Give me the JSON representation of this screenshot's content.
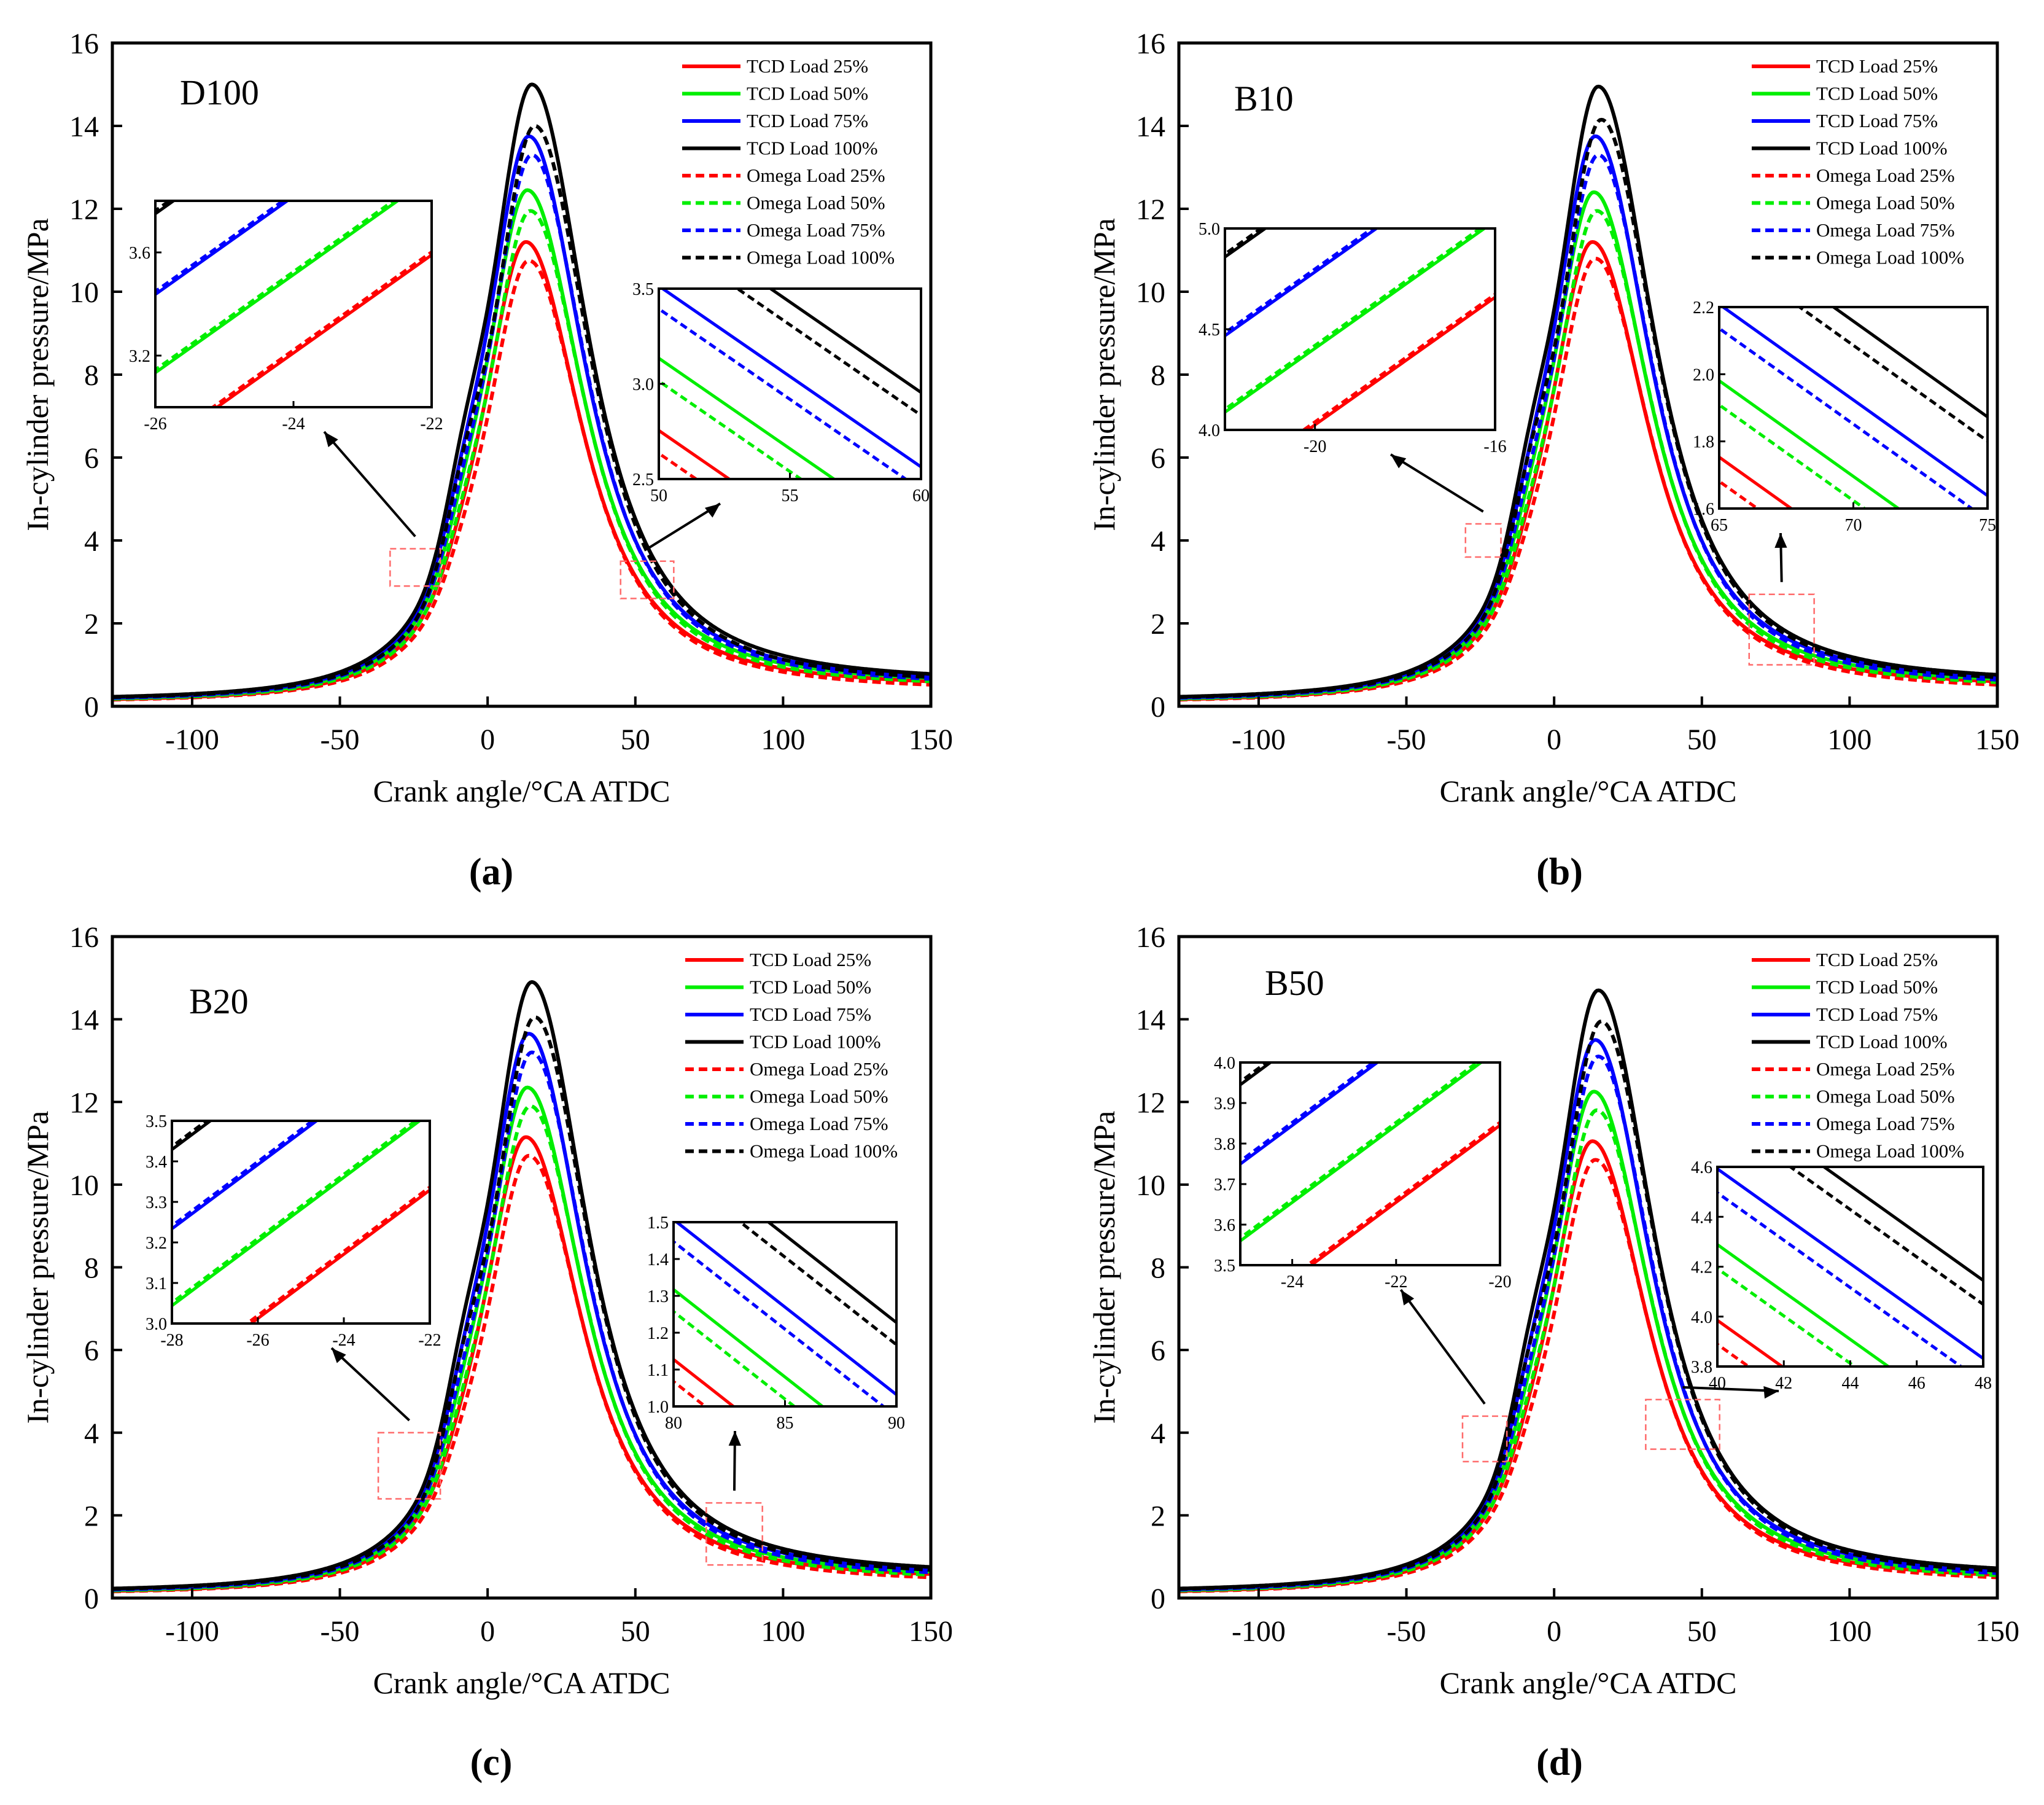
{
  "figure": {
    "panels": [
      {
        "id": "a",
        "caption": "(a)",
        "fuel_label": "D100",
        "callout_a": "left",
        "callout_b": "right"
      },
      {
        "id": "b",
        "caption": "(b)",
        "fuel_label": "B10",
        "callout_a": "left",
        "callout_b": "right"
      },
      {
        "id": "c",
        "caption": "(c)",
        "fuel_label": "B20",
        "callout_a": "left",
        "callout_b": "right"
      },
      {
        "id": "d",
        "caption": "(d)",
        "fuel_label": "B50",
        "callout_a": "left",
        "callout_b": "right"
      }
    ]
  },
  "chart_data": [
    {
      "type": "line",
      "title": "D100",
      "xlabel": "Crank angle/°CA ATDC",
      "ylabel": "In-cylinder pressure/MPa",
      "xlim": [
        -127,
        150
      ],
      "ylim": [
        0,
        16
      ],
      "xticks": [
        -100,
        -50,
        0,
        50,
        100,
        150
      ],
      "yticks": [
        0,
        2,
        4,
        6,
        8,
        10,
        12,
        14,
        16
      ],
      "legend_position": "top-right",
      "series": [
        {
          "name": "TCD Load 25%",
          "color": "#ff0000",
          "style": "solid",
          "peak": 11.2,
          "peak_angle": 13,
          "p0": 0.17,
          "p_end": 0.6,
          "shoulder": 0.35
        },
        {
          "name": "TCD Load 50%",
          "color": "#00ee00",
          "style": "solid",
          "peak": 12.45,
          "peak_angle": 13.5,
          "p0": 0.19,
          "p_end": 0.68,
          "shoulder": 0.6
        },
        {
          "name": "TCD Load 75%",
          "color": "#0000ff",
          "style": "solid",
          "peak": 13.75,
          "peak_angle": 14,
          "p0": 0.21,
          "p_end": 0.73,
          "shoulder": 0.9
        },
        {
          "name": "TCD Load 100%",
          "color": "#000000",
          "style": "solid",
          "peak": 15.0,
          "peak_angle": 15,
          "p0": 0.23,
          "p_end": 0.78,
          "shoulder": 1.3
        },
        {
          "name": "Omega Load 25%",
          "color": "#ff0000",
          "style": "dashed",
          "peak": 10.75,
          "peak_angle": 14,
          "p0": 0.16,
          "p_end": 0.52,
          "shoulder": 0.35
        },
        {
          "name": "Omega Load 50%",
          "color": "#00ee00",
          "style": "dashed",
          "peak": 11.95,
          "peak_angle": 14.5,
          "p0": 0.18,
          "p_end": 0.6,
          "shoulder": 0.6
        },
        {
          "name": "Omega Load 75%",
          "color": "#0000ff",
          "style": "dashed",
          "peak": 13.3,
          "peak_angle": 15,
          "p0": 0.2,
          "p_end": 0.66,
          "shoulder": 0.9
        },
        {
          "name": "Omega Load 100%",
          "color": "#000000",
          "style": "dashed",
          "peak": 14.0,
          "peak_angle": 16,
          "p0": 0.22,
          "p_end": 0.7,
          "shoulder": 1.3
        }
      ],
      "insets": [
        {
          "xlim": [
            -26,
            -22
          ],
          "ylim": [
            3.0,
            3.8
          ],
          "xticks": [
            -26,
            -24,
            -22
          ],
          "yticks": [
            3.2,
            3.6
          ],
          "source_x": [
            -33,
            -16
          ],
          "source_y": [
            2.9,
            3.8
          ]
        },
        {
          "xlim": [
            50,
            60
          ],
          "ylim": [
            2.5,
            3.5
          ],
          "xticks": [
            50,
            55,
            60
          ],
          "yticks": [
            2.5,
            3.0,
            3.5
          ],
          "source_x": [
            45,
            63
          ],
          "source_y": [
            2.6,
            3.5
          ]
        }
      ]
    },
    {
      "type": "line",
      "title": "B10",
      "xlabel": "Crank angle/°CA ATDC",
      "ylabel": "In-cylinder pressure/MPa",
      "xlim": [
        -127,
        150
      ],
      "ylim": [
        0,
        16
      ],
      "xticks": [
        -100,
        -50,
        0,
        50,
        100,
        150
      ],
      "yticks": [
        0,
        2,
        4,
        6,
        8,
        10,
        12,
        14,
        16
      ],
      "legend_position": "top-right",
      "series": [
        {
          "name": "TCD Load 25%",
          "color": "#ff0000",
          "style": "solid",
          "peak": 11.2,
          "peak_angle": 13,
          "p0": 0.17,
          "p_end": 0.6,
          "shoulder": 0.35
        },
        {
          "name": "TCD Load 50%",
          "color": "#00ee00",
          "style": "solid",
          "peak": 12.4,
          "peak_angle": 13.5,
          "p0": 0.19,
          "p_end": 0.66,
          "shoulder": 0.6
        },
        {
          "name": "TCD Load 75%",
          "color": "#0000ff",
          "style": "solid",
          "peak": 13.75,
          "peak_angle": 14,
          "p0": 0.21,
          "p_end": 0.72,
          "shoulder": 0.9
        },
        {
          "name": "TCD Load 100%",
          "color": "#000000",
          "style": "solid",
          "peak": 14.95,
          "peak_angle": 15,
          "p0": 0.23,
          "p_end": 0.76,
          "shoulder": 1.3
        },
        {
          "name": "Omega Load 25%",
          "color": "#ff0000",
          "style": "dashed",
          "peak": 10.8,
          "peak_angle": 14,
          "p0": 0.16,
          "p_end": 0.52,
          "shoulder": 0.35
        },
        {
          "name": "Omega Load 50%",
          "color": "#00ee00",
          "style": "dashed",
          "peak": 11.95,
          "peak_angle": 14.5,
          "p0": 0.18,
          "p_end": 0.58,
          "shoulder": 0.6
        },
        {
          "name": "Omega Load 75%",
          "color": "#0000ff",
          "style": "dashed",
          "peak": 13.3,
          "peak_angle": 15,
          "p0": 0.2,
          "p_end": 0.64,
          "shoulder": 0.9
        },
        {
          "name": "Omega Load 100%",
          "color": "#000000",
          "style": "dashed",
          "peak": 14.15,
          "peak_angle": 16,
          "p0": 0.22,
          "p_end": 0.7,
          "shoulder": 1.3
        }
      ],
      "insets": [
        {
          "xlim": [
            -22,
            -16
          ],
          "ylim": [
            4.0,
            5.0
          ],
          "xticks": [
            -20,
            -16
          ],
          "yticks": [
            4.0,
            4.5,
            5.0
          ],
          "source_x": [
            -30,
            -18
          ],
          "source_y": [
            3.6,
            4.4
          ]
        },
        {
          "xlim": [
            65,
            75
          ],
          "ylim": [
            1.6,
            2.2
          ],
          "xticks": [
            65,
            70,
            75
          ],
          "yticks": [
            1.6,
            1.8,
            2.0,
            2.2
          ],
          "source_x": [
            66,
            88
          ],
          "source_y": [
            1.0,
            2.7
          ]
        }
      ]
    },
    {
      "type": "line",
      "title": "B20",
      "xlabel": "Crank angle/°CA ATDC",
      "ylabel": "In-cylinder pressure/MPa",
      "xlim": [
        -127,
        150
      ],
      "ylim": [
        0,
        16
      ],
      "xticks": [
        -100,
        -50,
        0,
        50,
        100,
        150
      ],
      "yticks": [
        0,
        2,
        4,
        6,
        8,
        10,
        12,
        14,
        16
      ],
      "legend_position": "top-right",
      "series": [
        {
          "name": "TCD Load 25%",
          "color": "#ff0000",
          "style": "solid",
          "peak": 11.15,
          "peak_angle": 13,
          "p0": 0.17,
          "p_end": 0.58,
          "shoulder": 0.35
        },
        {
          "name": "TCD Load 50%",
          "color": "#00ee00",
          "style": "solid",
          "peak": 12.35,
          "peak_angle": 13.5,
          "p0": 0.19,
          "p_end": 0.64,
          "shoulder": 0.6
        },
        {
          "name": "TCD Load 75%",
          "color": "#0000ff",
          "style": "solid",
          "peak": 13.65,
          "peak_angle": 14,
          "p0": 0.21,
          "p_end": 0.7,
          "shoulder": 0.9
        },
        {
          "name": "TCD Load 100%",
          "color": "#000000",
          "style": "solid",
          "peak": 14.9,
          "peak_angle": 15,
          "p0": 0.23,
          "p_end": 0.75,
          "shoulder": 1.3
        },
        {
          "name": "Omega Load 25%",
          "color": "#ff0000",
          "style": "dashed",
          "peak": 10.7,
          "peak_angle": 14,
          "p0": 0.16,
          "p_end": 0.5,
          "shoulder": 0.35
        },
        {
          "name": "Omega Load 50%",
          "color": "#00ee00",
          "style": "dashed",
          "peak": 11.9,
          "peak_angle": 14.5,
          "p0": 0.18,
          "p_end": 0.56,
          "shoulder": 0.6
        },
        {
          "name": "Omega Load 75%",
          "color": "#0000ff",
          "style": "dashed",
          "peak": 13.2,
          "peak_angle": 15,
          "p0": 0.2,
          "p_end": 0.62,
          "shoulder": 0.9
        },
        {
          "name": "Omega Load 100%",
          "color": "#000000",
          "style": "dashed",
          "peak": 14.05,
          "peak_angle": 16,
          "p0": 0.22,
          "p_end": 0.68,
          "shoulder": 1.3
        }
      ],
      "insets": [
        {
          "xlim": [
            -28,
            -22
          ],
          "ylim": [
            3.0,
            3.5
          ],
          "xticks": [
            -28,
            -26,
            -24,
            -22
          ],
          "yticks": [
            3.0,
            3.1,
            3.2,
            3.3,
            3.4,
            3.5
          ],
          "source_x": [
            -37,
            -16
          ],
          "source_y": [
            2.4,
            4.0
          ]
        },
        {
          "xlim": [
            80,
            90
          ],
          "ylim": [
            1.0,
            1.5
          ],
          "xticks": [
            80,
            85,
            90
          ],
          "yticks": [
            1.0,
            1.1,
            1.2,
            1.3,
            1.4,
            1.5
          ],
          "source_x": [
            74,
            93
          ],
          "source_y": [
            0.8,
            2.3
          ]
        }
      ]
    },
    {
      "type": "line",
      "title": "B50",
      "xlabel": "Crank angle/°CA ATDC",
      "ylabel": "In-cylinder pressure/MPa",
      "xlim": [
        -127,
        150
      ],
      "ylim": [
        0,
        16
      ],
      "xticks": [
        -100,
        -50,
        0,
        50,
        100,
        150
      ],
      "yticks": [
        0,
        2,
        4,
        6,
        8,
        10,
        12,
        14,
        16
      ],
      "legend_position": "top-right",
      "series": [
        {
          "name": "TCD Load 25%",
          "color": "#ff0000",
          "style": "solid",
          "peak": 11.05,
          "peak_angle": 13,
          "p0": 0.17,
          "p_end": 0.56,
          "shoulder": 0.35
        },
        {
          "name": "TCD Load 50%",
          "color": "#00ee00",
          "style": "solid",
          "peak": 12.25,
          "peak_angle": 13.5,
          "p0": 0.19,
          "p_end": 0.62,
          "shoulder": 0.6
        },
        {
          "name": "TCD Load 75%",
          "color": "#0000ff",
          "style": "solid",
          "peak": 13.5,
          "peak_angle": 14,
          "p0": 0.21,
          "p_end": 0.67,
          "shoulder": 0.9
        },
        {
          "name": "TCD Load 100%",
          "color": "#000000",
          "style": "solid",
          "peak": 14.7,
          "peak_angle": 15,
          "p0": 0.23,
          "p_end": 0.72,
          "shoulder": 1.3
        },
        {
          "name": "Omega Load 25%",
          "color": "#ff0000",
          "style": "dashed",
          "peak": 10.6,
          "peak_angle": 14,
          "p0": 0.16,
          "p_end": 0.5,
          "shoulder": 0.35
        },
        {
          "name": "Omega Load 50%",
          "color": "#00ee00",
          "style": "dashed",
          "peak": 11.8,
          "peak_angle": 14.5,
          "p0": 0.18,
          "p_end": 0.55,
          "shoulder": 0.6
        },
        {
          "name": "Omega Load 75%",
          "color": "#0000ff",
          "style": "dashed",
          "peak": 13.1,
          "peak_angle": 15,
          "p0": 0.2,
          "p_end": 0.6,
          "shoulder": 0.9
        },
        {
          "name": "Omega Load 100%",
          "color": "#000000",
          "style": "dashed",
          "peak": 13.95,
          "peak_angle": 16,
          "p0": 0.22,
          "p_end": 0.66,
          "shoulder": 1.3
        }
      ],
      "insets": [
        {
          "xlim": [
            -25,
            -20
          ],
          "ylim": [
            3.5,
            4.0
          ],
          "xticks": [
            -24,
            -22,
            -20
          ],
          "yticks": [
            3.5,
            3.6,
            3.7,
            3.8,
            3.9,
            4.0
          ],
          "source_x": [
            -31,
            -16
          ],
          "source_y": [
            3.3,
            4.4
          ]
        },
        {
          "xlim": [
            40,
            48
          ],
          "ylim": [
            3.8,
            4.6
          ],
          "xticks": [
            40,
            42,
            44,
            46,
            48
          ],
          "yticks": [
            3.8,
            4.0,
            4.2,
            4.4,
            4.6
          ],
          "source_x": [
            31,
            56
          ],
          "source_y": [
            3.6,
            4.8
          ]
        }
      ]
    }
  ]
}
